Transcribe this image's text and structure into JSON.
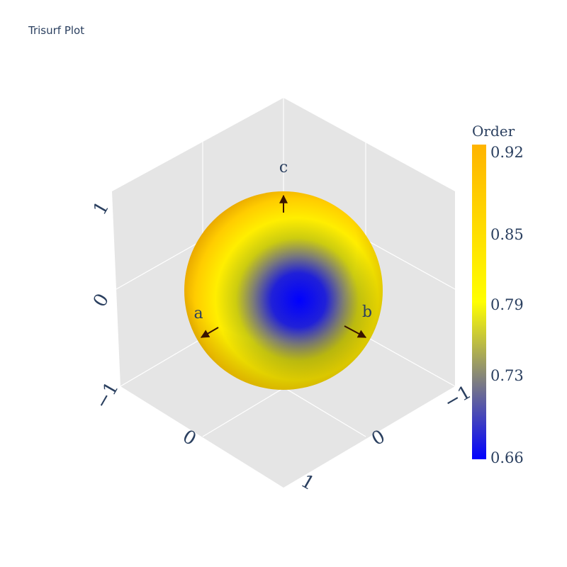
{
  "title": "Trisurf Plot",
  "chart_data": {
    "type": "surface",
    "title": "Trisurf Plot",
    "surface": "sphere",
    "color_variable": "Order",
    "colorbar": {
      "title": "Order",
      "min": 0.66,
      "max": 0.92,
      "ticks": [
        "0.92",
        "0.85",
        "0.79",
        "0.73",
        "0.66"
      ],
      "colorscale": [
        "#0000ff",
        "#ffff00",
        "#ffb400"
      ]
    },
    "axes": {
      "x": {
        "range": [
          -1,
          1
        ],
        "ticks": [
          "−1",
          "0",
          "1"
        ]
      },
      "y": {
        "range": [
          -1,
          1
        ],
        "ticks": [
          "−1",
          "0",
          "1"
        ]
      },
      "z": {
        "range": [
          -1,
          1
        ],
        "ticks": [
          "−1",
          "0",
          "1"
        ]
      }
    },
    "direction_labels": [
      "a",
      "b",
      "c"
    ],
    "background_color": "#e5e5e5",
    "grid": true
  }
}
